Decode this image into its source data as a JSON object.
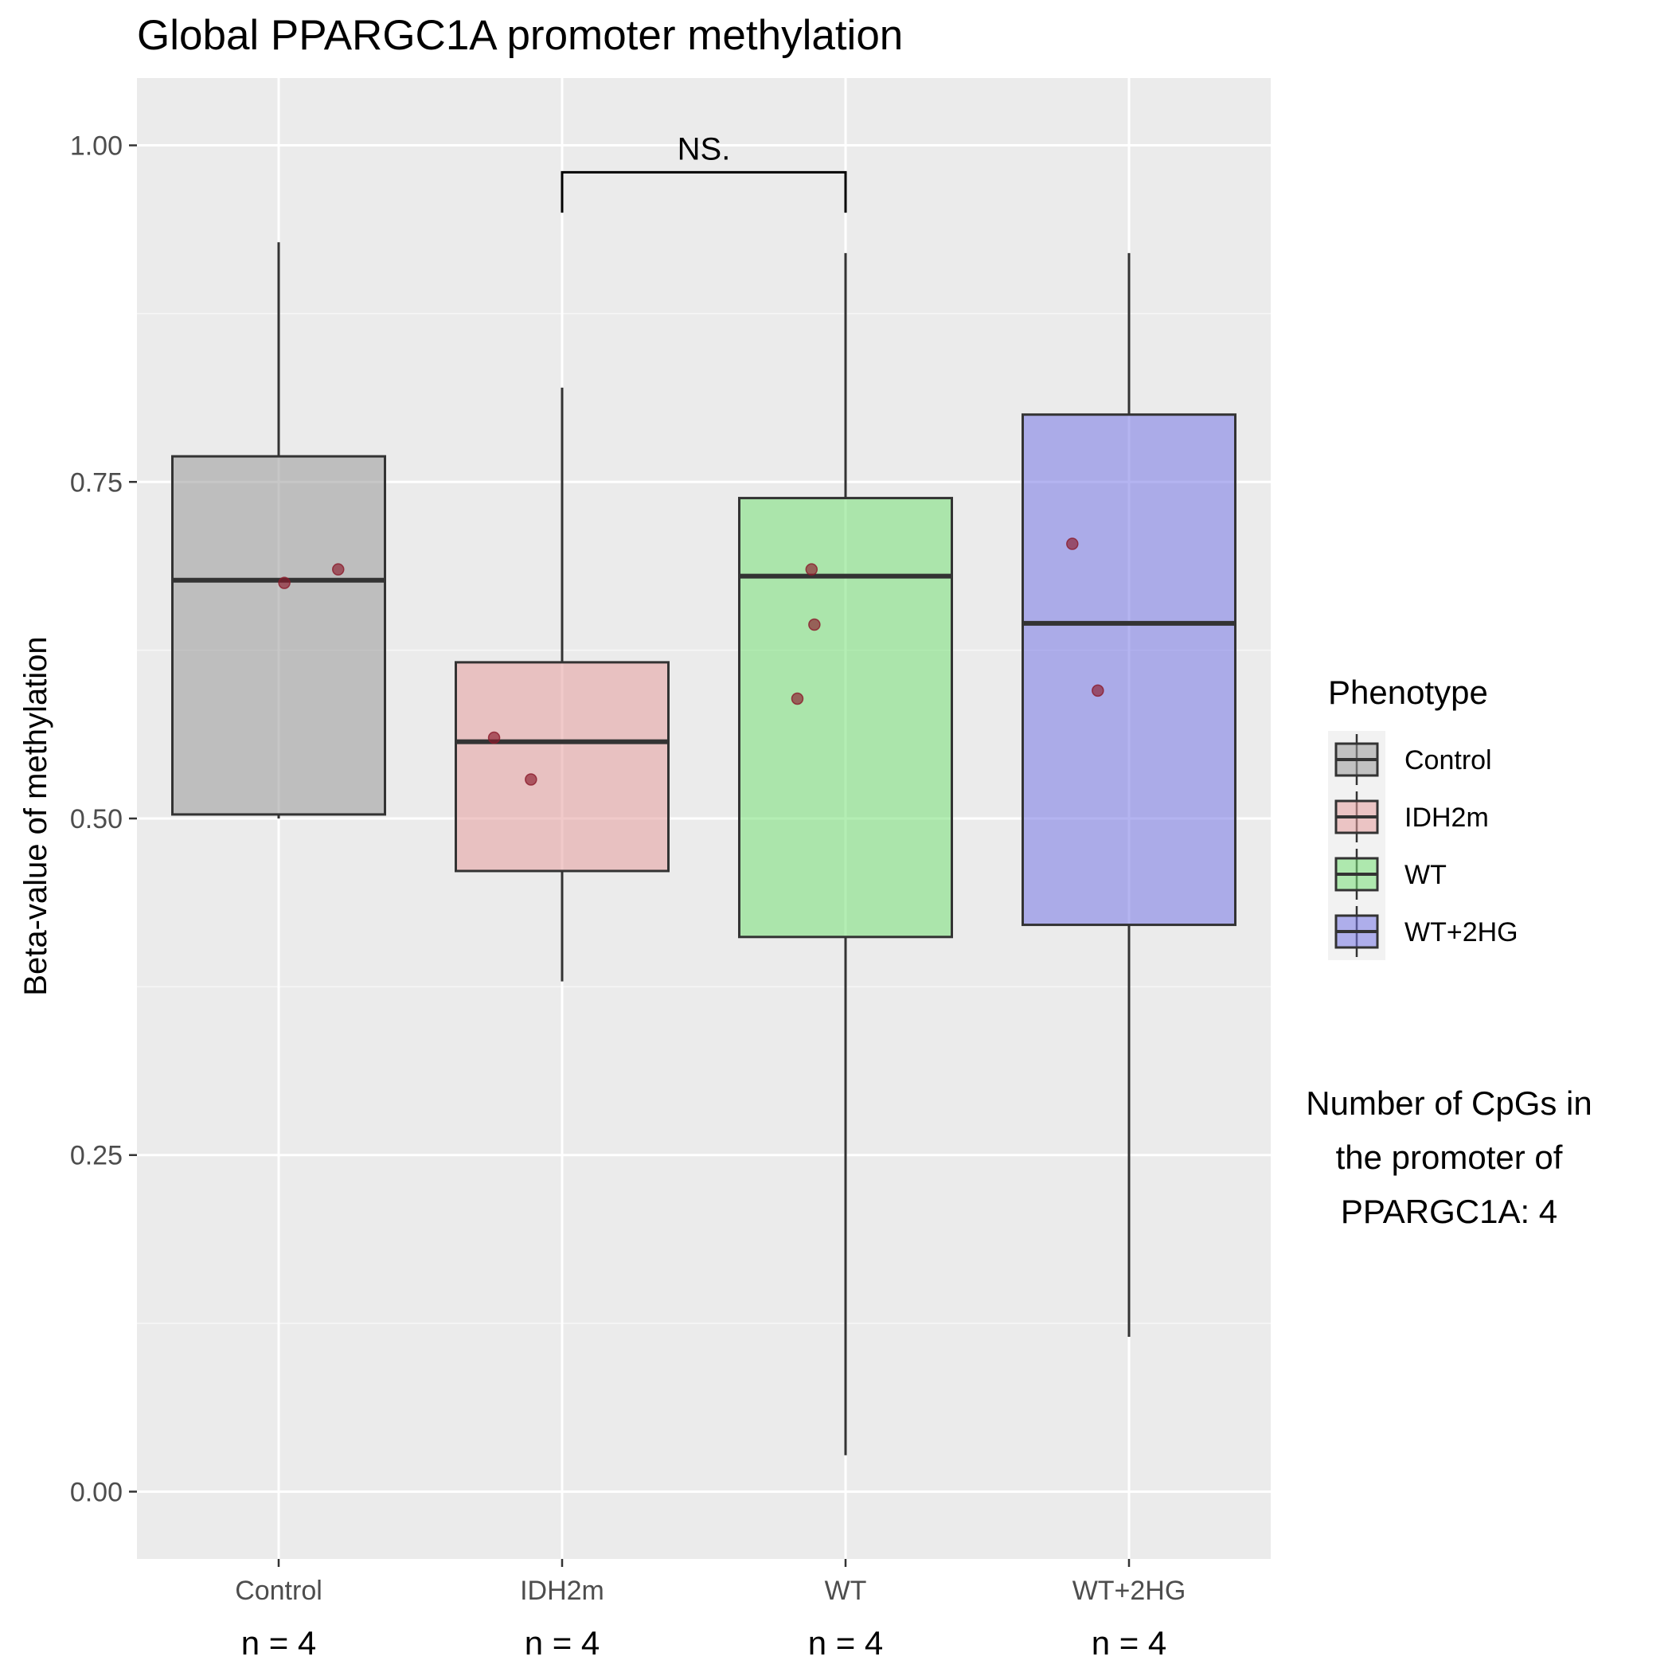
{
  "chart_data": {
    "type": "boxplot",
    "title": "Global PPARGC1A promoter methylation",
    "ylabel": "Beta-value of methylation",
    "xlabel": "",
    "ylim": [
      -0.05,
      1.05
    ],
    "yticks": [
      0.0,
      0.25,
      0.5,
      0.75,
      1.0
    ],
    "ytick_labels": [
      "0.00",
      "0.25",
      "0.50",
      "0.75",
      "1.00"
    ],
    "grid": true,
    "categories": [
      "Control",
      "IDH2m",
      "WT",
      "WT+2HG"
    ],
    "n_labels": [
      "n = 4",
      "n = 4",
      "n = 4",
      "n = 4"
    ],
    "boxes": [
      {
        "name": "Control",
        "color": "#999999",
        "whisker_low": 0.5,
        "q1": 0.503,
        "median": 0.677,
        "q3": 0.769,
        "whisker_high": 0.928,
        "points": [
          {
            "dx": 0.02,
            "y": 0.675
          },
          {
            "dx": 0.21,
            "y": 0.685
          }
        ]
      },
      {
        "name": "IDH2m",
        "color": "#E69F9F",
        "whisker_low": 0.379,
        "q1": 0.461,
        "median": 0.557,
        "q3": 0.616,
        "whisker_high": 0.82,
        "points": [
          {
            "dx": -0.24,
            "y": 0.56
          },
          {
            "dx": -0.11,
            "y": 0.529
          }
        ]
      },
      {
        "name": "WT",
        "color": "#77E077",
        "whisker_low": 0.027,
        "q1": 0.412,
        "median": 0.68,
        "q3": 0.738,
        "whisker_high": 0.92,
        "points": [
          {
            "dx": -0.17,
            "y": 0.589
          },
          {
            "dx": -0.11,
            "y": 0.644
          },
          {
            "dx": -0.12,
            "y": 0.685
          }
        ]
      },
      {
        "name": "WT+2HG",
        "color": "#7777E6",
        "whisker_low": 0.115,
        "q1": 0.421,
        "median": 0.645,
        "q3": 0.8,
        "whisker_high": 0.92,
        "points": [
          {
            "dx": -0.2,
            "y": 0.704
          },
          {
            "dx": -0.11,
            "y": 0.595
          }
        ]
      }
    ],
    "point_color": "#8B1A2B",
    "comparison": {
      "from": "IDH2m",
      "to": "WT",
      "label": "NS.",
      "y_bar": 0.98,
      "y_tip": 0.95
    },
    "legend": {
      "title": "Phenotype",
      "position": "right",
      "items": [
        "Control",
        "IDH2m",
        "WT",
        "WT+2HG"
      ]
    },
    "annotation": [
      "Number of CpGs in",
      "the promoter of",
      "PPARGC1A: 4"
    ]
  }
}
